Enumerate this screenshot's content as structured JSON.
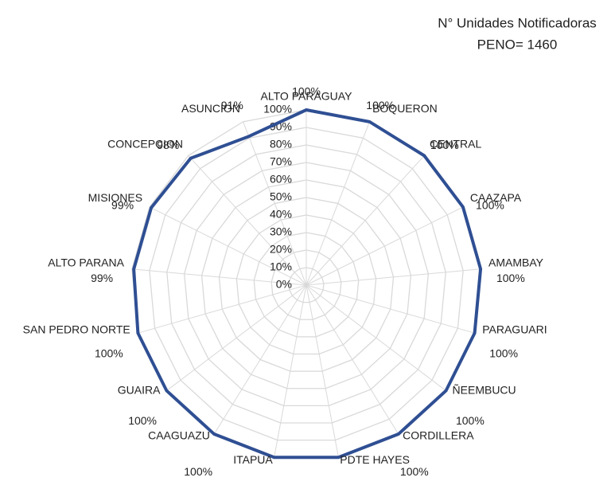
{
  "chart_data": {
    "type": "radar",
    "title": "N° Unidades Notificadoras",
    "subtitle": "PENO= 1460",
    "categories": [
      "ALTO PARAGUAY",
      "BOQUERON",
      "CENTRAL",
      "CAAZAPA",
      "AMAMBAY",
      "PARAGUARI",
      "ÑEEMBUCU",
      "CORDILLERA",
      "PDTE HAYES",
      "ITAPUA",
      "CAAGUAZU",
      "GUAIRA",
      "SAN PEDRO NORTE",
      "ALTO PARANA",
      "MISIONES",
      "CONCEPCION",
      "ASUNCION"
    ],
    "values": [
      100,
      100,
      100,
      100,
      100,
      100,
      100,
      100,
      100,
      100,
      100,
      100,
      100,
      99,
      99,
      98,
      91
    ],
    "value_labels": [
      "100%",
      "100%",
      "100%",
      "100%",
      "100%",
      "100%",
      "100%",
      "100%",
      "100%",
      "100%",
      "100%",
      "100%",
      "100%",
      "99%",
      "99%",
      "98%",
      "91%"
    ],
    "color": "#2f4f93",
    "ylim": [
      0,
      100
    ],
    "yticks": [
      {
        "value": 0,
        "label": "0%"
      },
      {
        "value": 10,
        "label": "10%"
      },
      {
        "value": 20,
        "label": "20%"
      },
      {
        "value": 30,
        "label": "30%"
      },
      {
        "value": 40,
        "label": "40%"
      },
      {
        "value": 50,
        "label": "50%"
      },
      {
        "value": 60,
        "label": "60%"
      },
      {
        "value": 70,
        "label": "70%"
      },
      {
        "value": 80,
        "label": "80%"
      },
      {
        "value": 90,
        "label": "90%"
      },
      {
        "value": 100,
        "label": "100%"
      }
    ],
    "grid": true
  }
}
